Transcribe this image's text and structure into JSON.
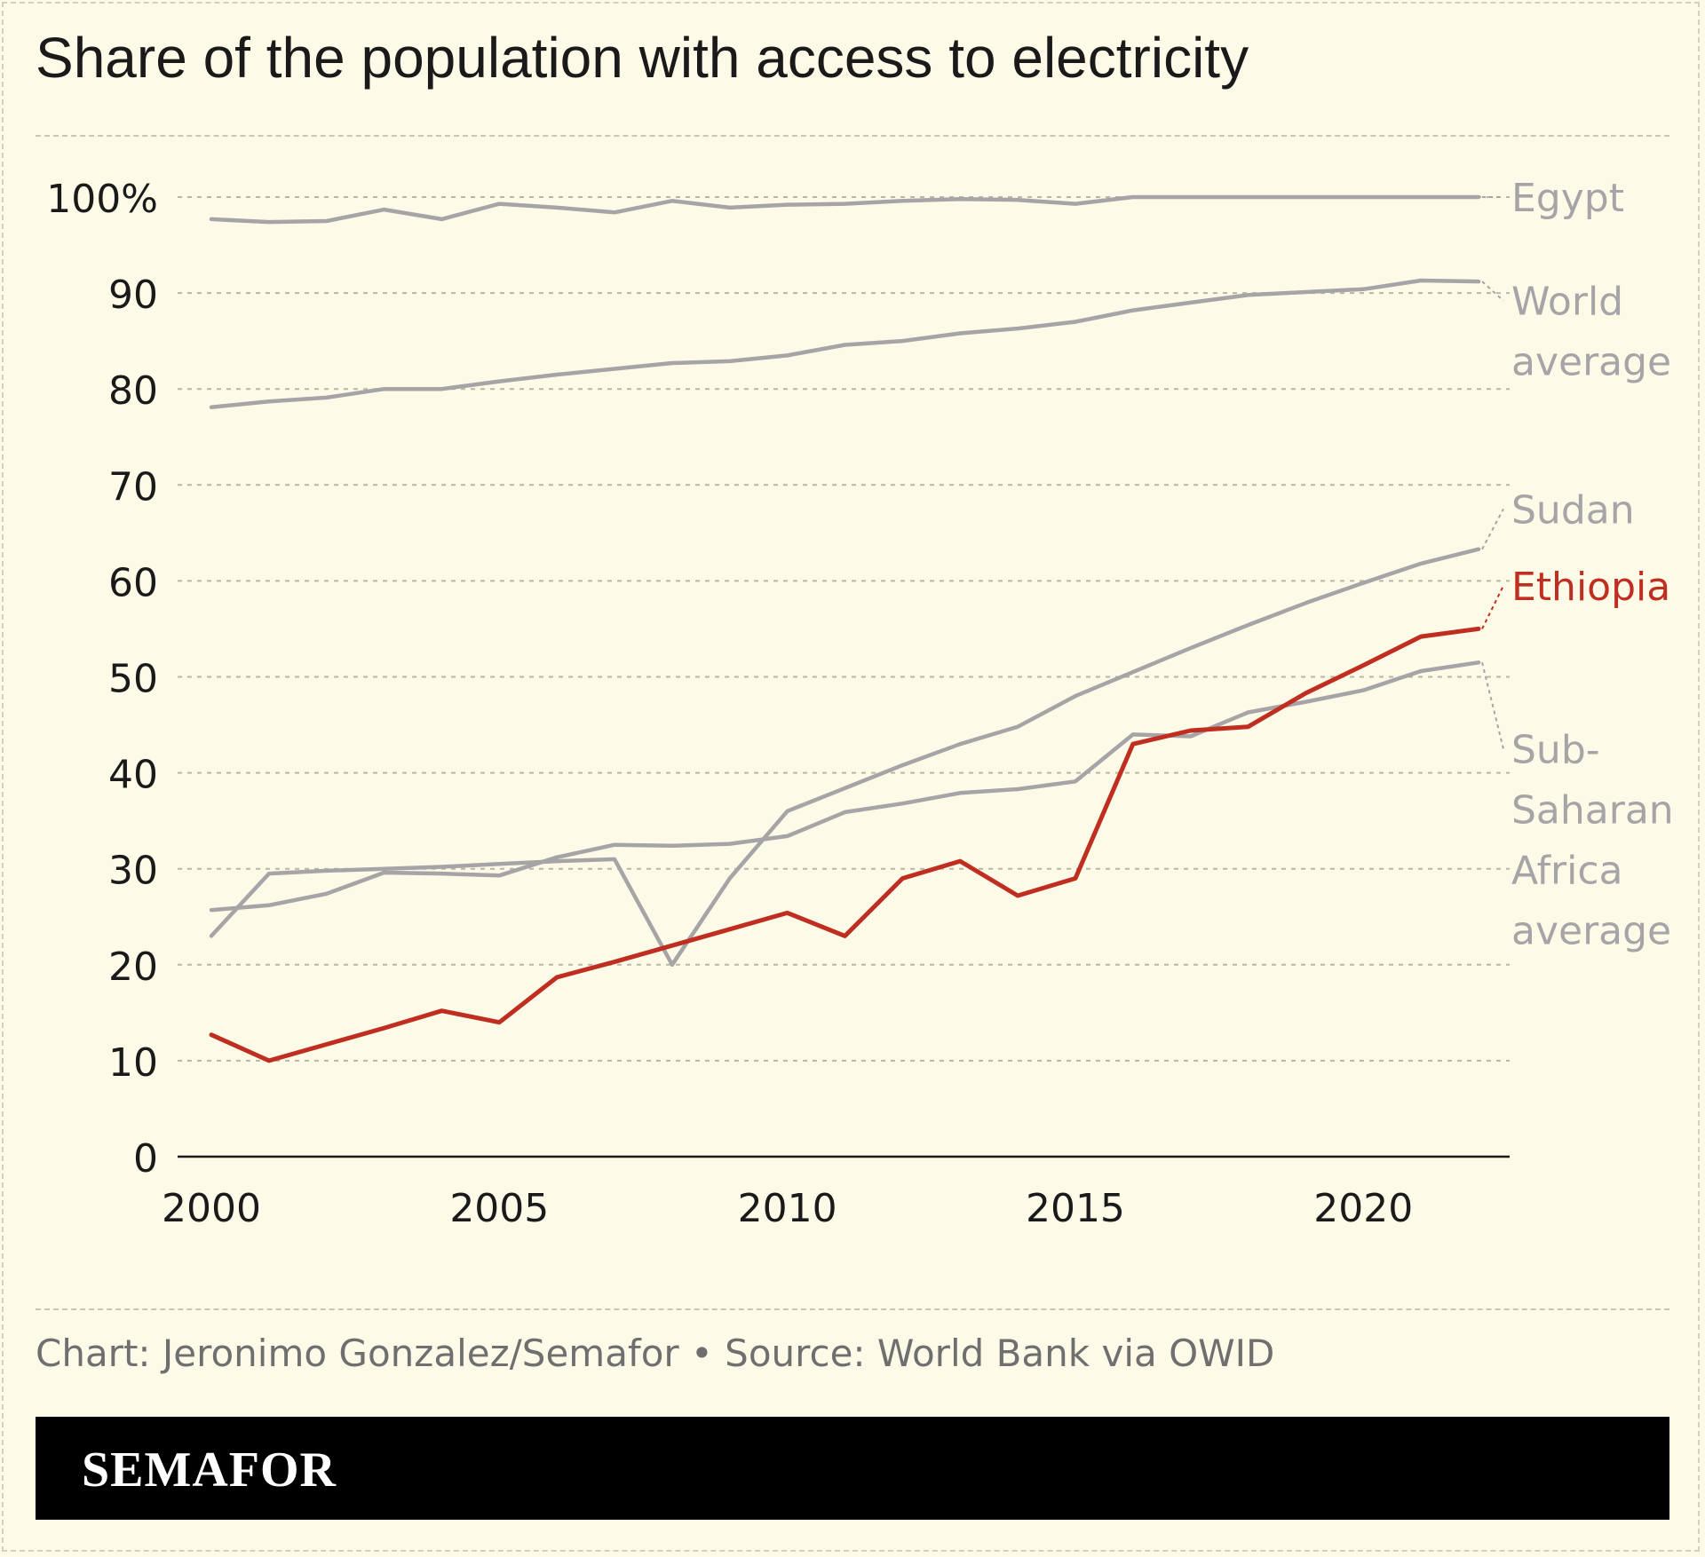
{
  "title": "Share of the population with access to electricity",
  "credit": "Chart: Jeronimo Gonzalez/Semafor • Source: World Bank via OWID",
  "brand": "SEMAFOR",
  "colors": {
    "background": "#fdfbe8",
    "gray_series": "#a6a4a6",
    "highlight": "#bf2e20",
    "grid": "#b9b6a6"
  },
  "chart_data": {
    "type": "line",
    "x": [
      2000,
      2001,
      2002,
      2003,
      2004,
      2005,
      2006,
      2007,
      2008,
      2009,
      2010,
      2011,
      2012,
      2013,
      2014,
      2015,
      2016,
      2017,
      2018,
      2019,
      2020,
      2021,
      2022
    ],
    "xticks": [
      2000,
      2005,
      2010,
      2015,
      2020
    ],
    "xtick_labels": [
      "2000",
      "2005",
      "2010",
      "2015",
      "2020"
    ],
    "xlim": [
      2000,
      2022
    ],
    "ylim": [
      0,
      100
    ],
    "yticks": [
      0,
      10,
      20,
      30,
      40,
      50,
      60,
      70,
      80,
      90,
      100
    ],
    "ytick_labels": [
      "0",
      "10",
      "20",
      "30",
      "40",
      "50",
      "60",
      "70",
      "80",
      "90",
      "100%"
    ],
    "grid": true,
    "series": [
      {
        "name": "Egypt",
        "label_lines": [
          "Egypt"
        ],
        "highlight": false,
        "values": [
          97.7,
          97.4,
          97.5,
          98.7,
          97.7,
          99.3,
          98.9,
          98.4,
          99.6,
          98.9,
          99.2,
          99.3,
          99.6,
          99.8,
          99.7,
          99.3,
          100,
          100,
          100,
          100,
          100,
          100,
          100
        ]
      },
      {
        "name": "World average",
        "label_lines": [
          "World",
          "average"
        ],
        "highlight": false,
        "values": [
          78.1,
          78.7,
          79.1,
          80.0,
          80.0,
          80.8,
          81.5,
          82.1,
          82.7,
          82.9,
          83.5,
          84.6,
          85.0,
          85.8,
          86.3,
          87.0,
          88.2,
          89.0,
          89.8,
          90.1,
          90.4,
          91.3,
          91.2
        ]
      },
      {
        "name": "Sudan",
        "label_lines": [
          "Sudan"
        ],
        "highlight": false,
        "values": [
          23.0,
          29.5,
          29.8,
          30.0,
          30.2,
          30.5,
          30.8,
          31.0,
          20.0,
          29.0,
          36.0,
          38.4,
          40.8,
          43.0,
          44.8,
          48.0,
          50.5,
          53.0,
          55.4,
          57.7,
          59.8,
          61.8,
          63.3
        ]
      },
      {
        "name": "Ethiopia",
        "label_lines": [
          "Ethiopia"
        ],
        "highlight": true,
        "values": [
          12.7,
          10.0,
          11.7,
          13.4,
          15.2,
          14.0,
          18.7,
          20.3,
          22.0,
          23.7,
          25.4,
          23.0,
          29.0,
          30.8,
          27.2,
          29.0,
          43.0,
          44.4,
          44.8,
          48.3,
          51.2,
          54.2,
          55.0
        ]
      },
      {
        "name": "Sub-Saharan Africa average",
        "label_lines": [
          "Sub-",
          "Saharan",
          "Africa",
          "average"
        ],
        "highlight": false,
        "values": [
          25.7,
          26.2,
          27.4,
          29.6,
          29.5,
          29.3,
          31.2,
          32.5,
          32.4,
          32.6,
          33.4,
          35.9,
          36.8,
          37.9,
          38.3,
          39.1,
          44.0,
          43.8,
          46.3,
          47.4,
          48.6,
          50.6,
          51.5
        ]
      }
    ],
    "label_y": [
      100,
      89.2,
      67.5,
      59.5,
      42.5
    ]
  }
}
